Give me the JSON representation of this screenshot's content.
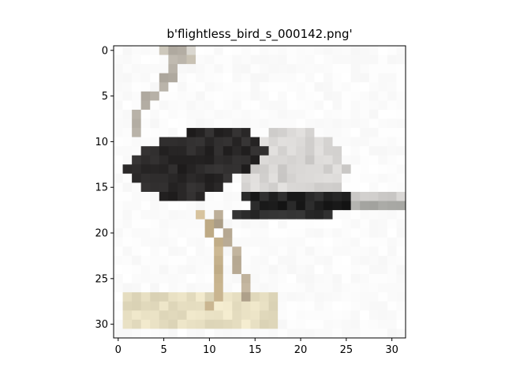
{
  "title": "b'flightless_bird_s_000142.png'",
  "image": {
    "rows": 32,
    "cols": 32,
    "description_colors": {
      "background": "#fbfbfb",
      "body": "#2a2828",
      "neck": "#b8b2a8",
      "wing_light": "#d6d4d2",
      "legs": "#cbb792",
      "ground": "#e7dfc2"
    }
  },
  "axes": {
    "x_ticks": [
      "0",
      "5",
      "10",
      "15",
      "20",
      "25",
      "30"
    ],
    "y_ticks": [
      "0",
      "5",
      "10",
      "15",
      "20",
      "25",
      "30"
    ],
    "x_tick_values": [
      0,
      5,
      10,
      15,
      20,
      25,
      30
    ],
    "y_tick_values": [
      0,
      5,
      10,
      15,
      20,
      25,
      30
    ]
  }
}
